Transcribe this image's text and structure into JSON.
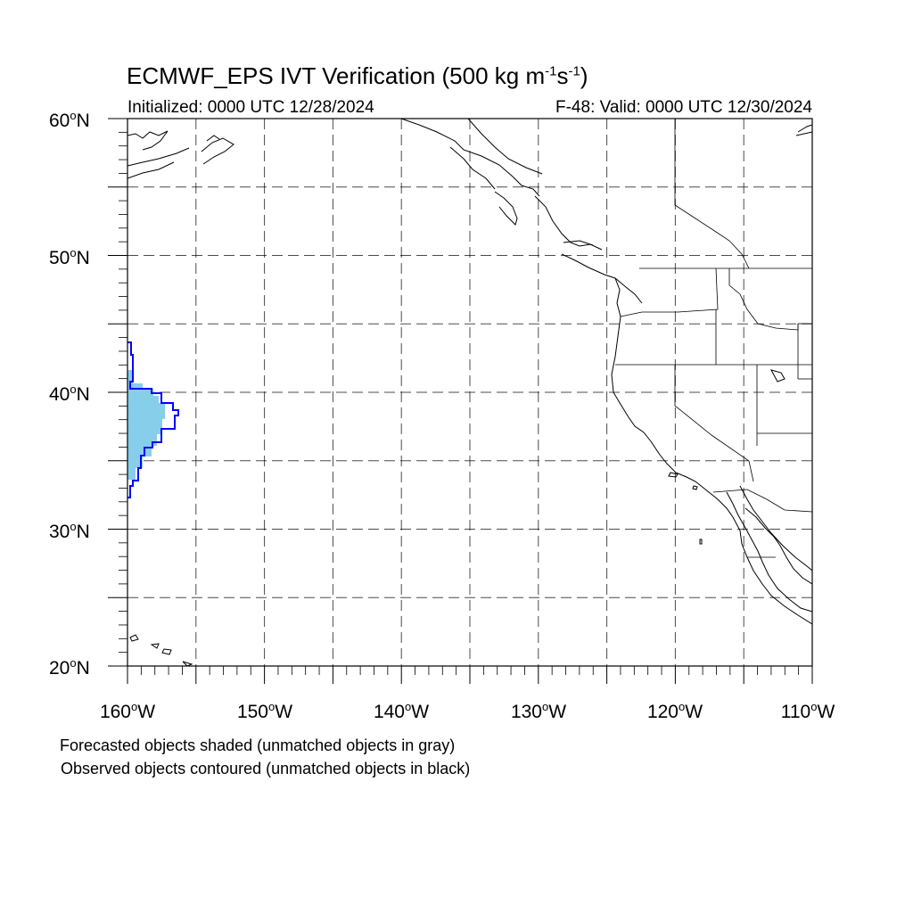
{
  "title": {
    "text_pre": "ECMWF_EPS IVT Verification (500 kg m",
    "sup1": "-1",
    "text_mid": "s",
    "sup2": "-1",
    "text_post": ")"
  },
  "subtitle_left": "Initialized: 0000 UTC 12/28/2024",
  "subtitle_right": "F-48: Valid: 0000 UTC 12/30/2024",
  "lat_labels": [
    {
      "value": "60",
      "suffix": "N"
    },
    {
      "value": "50",
      "suffix": "N"
    },
    {
      "value": "40",
      "suffix": "N"
    },
    {
      "value": "30",
      "suffix": "N"
    },
    {
      "value": "20",
      "suffix": "N"
    }
  ],
  "lon_labels": [
    {
      "value": "160",
      "suffix": "W"
    },
    {
      "value": "150",
      "suffix": "W"
    },
    {
      "value": "140",
      "suffix": "W"
    },
    {
      "value": "130",
      "suffix": "W"
    },
    {
      "value": "120",
      "suffix": "W"
    },
    {
      "value": "110",
      "suffix": "W"
    }
  ],
  "map_extent": {
    "lon_min": -160,
    "lon_max": -110,
    "lat_min": 20,
    "lat_max": 60
  },
  "grid_spacing_deg": 5,
  "colors": {
    "forecast_fill": "#87ceeb",
    "observed_contour": "#0000ff",
    "coast": "#000000",
    "grid": "#000000"
  },
  "captions": {
    "line1": "Forecasted objects shaded (unmatched objects in gray)",
    "line2": "Observed objects contoured (unmatched objects in black)"
  }
}
